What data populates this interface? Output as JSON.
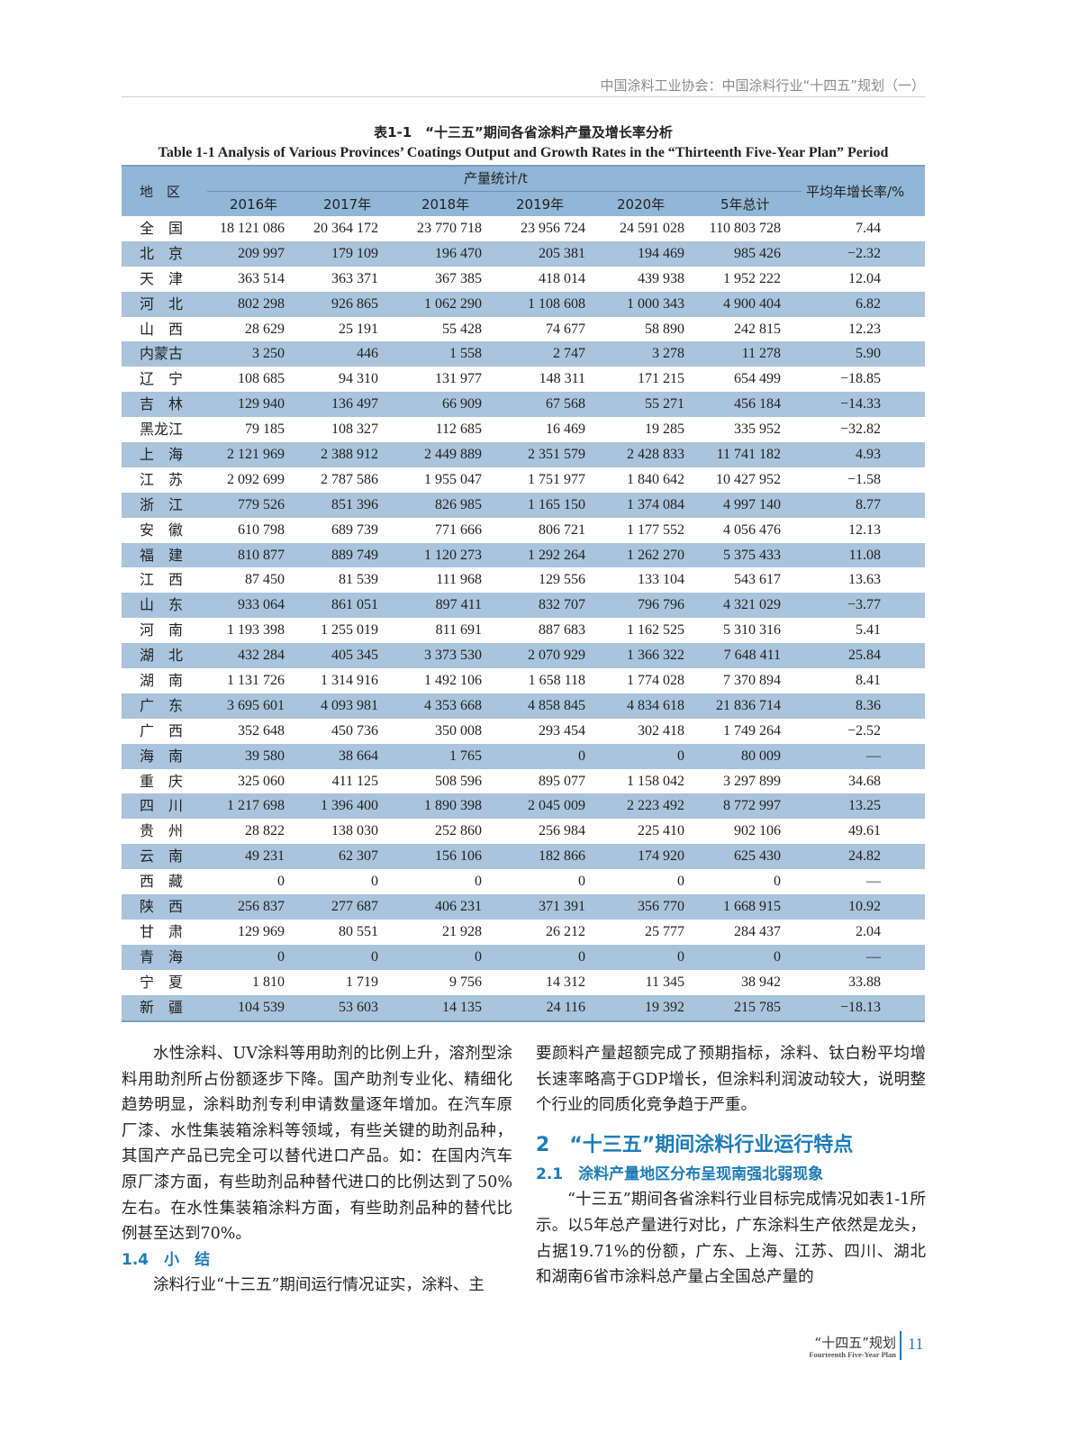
{
  "running_head": "中国涂料工业协会：中国涂料行业“十四五”规划（一）",
  "table": {
    "caption_cn": "表1-1　“十三五”期间各省涂料产量及增长率分析",
    "caption_en": "Table 1-1  Analysis of Various Provinces’ Coatings Output and Growth Rates in the “Thirteenth Five-Year Plan” Period",
    "header": {
      "region": "地　区",
      "group": "产量统计/t",
      "years": [
        "2016年",
        "2017年",
        "2018年",
        "2019年",
        "2020年",
        "5年总计"
      ],
      "rate": "平均年增长率/%"
    },
    "header_color": "#92b6d6",
    "stripe_color": "#a9c4dc",
    "rows": [
      [
        "全　国",
        "18 121 086",
        "20 364 172",
        "23 770 718",
        "23 956 724",
        "24 591 028",
        "110 803 728",
        "7.44"
      ],
      [
        "北　京",
        "209 997",
        "179 109",
        "196 470",
        "205 381",
        "194 469",
        "985 426",
        "−2.32"
      ],
      [
        "天　津",
        "363 514",
        "363 371",
        "367 385",
        "418 014",
        "439 938",
        "1 952 222",
        "12.04"
      ],
      [
        "河　北",
        "802 298",
        "926 865",
        "1 062 290",
        "1 108 608",
        "1 000 343",
        "4 900 404",
        "6.82"
      ],
      [
        "山　西",
        "28 629",
        "25 191",
        "55 428",
        "74 677",
        "58 890",
        "242 815",
        "12.23"
      ],
      [
        "内蒙古",
        "3 250",
        "446",
        "1 558",
        "2 747",
        "3 278",
        "11 278",
        "5.90"
      ],
      [
        "辽　宁",
        "108 685",
        "94 310",
        "131 977",
        "148 311",
        "171 215",
        "654 499",
        "−18.85"
      ],
      [
        "吉　林",
        "129 940",
        "136 497",
        "66 909",
        "67 568",
        "55 271",
        "456 184",
        "−14.33"
      ],
      [
        "黑龙江",
        "79 185",
        "108 327",
        "112 685",
        "16 469",
        "19 285",
        "335 952",
        "−32.82"
      ],
      [
        "上　海",
        "2 121 969",
        "2 388 912",
        "2 449 889",
        "2 351 579",
        "2 428 833",
        "11 741 182",
        "4.93"
      ],
      [
        "江　苏",
        "2 092 699",
        "2 787 586",
        "1 955 047",
        "1 751 977",
        "1 840 642",
        "10 427 952",
        "−1.58"
      ],
      [
        "浙　江",
        "779 526",
        "851 396",
        "826 985",
        "1 165 150",
        "1 374 084",
        "4 997 140",
        "8.77"
      ],
      [
        "安　徽",
        "610 798",
        "689 739",
        "771 666",
        "806 721",
        "1 177 552",
        "4 056 476",
        "12.13"
      ],
      [
        "福　建",
        "810 877",
        "889 749",
        "1 120 273",
        "1 292 264",
        "1 262 270",
        "5 375 433",
        "11.08"
      ],
      [
        "江　西",
        "87 450",
        "81 539",
        "111 968",
        "129 556",
        "133 104",
        "543 617",
        "13.63"
      ],
      [
        "山　东",
        "933 064",
        "861 051",
        "897 411",
        "832 707",
        "796 796",
        "4 321 029",
        "−3.77"
      ],
      [
        "河　南",
        "1 193 398",
        "1 255 019",
        "811 691",
        "887 683",
        "1 162 525",
        "5 310 316",
        "5.41"
      ],
      [
        "湖　北",
        "432 284",
        "405 345",
        "3 373 530",
        "2 070 929",
        "1 366 322",
        "7 648 411",
        "25.84"
      ],
      [
        "湖　南",
        "1 131 726",
        "1 314 916",
        "1 492 106",
        "1 658 118",
        "1 774 028",
        "7 370 894",
        "8.41"
      ],
      [
        "广　东",
        "3 695 601",
        "4 093 981",
        "4 353 668",
        "4 858 845",
        "4 834 618",
        "21 836 714",
        "8.36"
      ],
      [
        "广　西",
        "352 648",
        "450 736",
        "350 008",
        "293 454",
        "302 418",
        "1 749 264",
        "−2.52"
      ],
      [
        "海　南",
        "39 580",
        "38 664",
        "1 765",
        "0",
        "0",
        "80 009",
        "—"
      ],
      [
        "重　庆",
        "325 060",
        "411 125",
        "508 596",
        "895 077",
        "1 158 042",
        "3 297 899",
        "34.68"
      ],
      [
        "四　川",
        "1 217 698",
        "1 396 400",
        "1 890 398",
        "2 045 009",
        "2 223 492",
        "8 772 997",
        "13.25"
      ],
      [
        "贵　州",
        "28 822",
        "138 030",
        "252 860",
        "256 984",
        "225 410",
        "902 106",
        "49.61"
      ],
      [
        "云　南",
        "49 231",
        "62 307",
        "156 106",
        "182 866",
        "174 920",
        "625 430",
        "24.82"
      ],
      [
        "西　藏",
        "0",
        "0",
        "0",
        "0",
        "0",
        "0",
        "—"
      ],
      [
        "陕　西",
        "256 837",
        "277 687",
        "406 231",
        "371 391",
        "356 770",
        "1 668 915",
        "10.92"
      ],
      [
        "甘　肃",
        "129 969",
        "80 551",
        "21 928",
        "26 212",
        "25 777",
        "284 437",
        "2.04"
      ],
      [
        "青　海",
        "0",
        "0",
        "0",
        "0",
        "0",
        "0",
        "—"
      ],
      [
        "宁　夏",
        "1 810",
        "1 719",
        "9 756",
        "14 312",
        "11 345",
        "38 942",
        "33.88"
      ],
      [
        "新　疆",
        "104 539",
        "53 603",
        "14 135",
        "24 116",
        "19 392",
        "215 785",
        "−18.13"
      ]
    ]
  },
  "body": {
    "left_para1": "水性涂料、UV涂料等用助剂的比例上升，溶剂型涂料用助剂所占份额逐步下降。国产助剂专业化、精细化趋势明显，涂料助剂专利申请数量逐年增加。在汽车原厂漆、水性集装箱涂料等领域，有些关键的助剂品种，其国产产品已完全可以替代进口产品。如：在国内汽车原厂漆方面，有些助剂品种替代进口的比例达到了50%左右。在水性集装箱涂料方面，有些助剂品种的替代比例甚至达到70%。",
    "heading_1_4": "1.4　小　结",
    "left_para2": "涂料行业“十三五”期间运行情况证实，涂料、主",
    "right_para1": "要颜料产量超额完成了预期指标，涂料、钛白粉平均增长速率略高于GDP增长，但涂料利润波动较大，说明整个行业的同质化竞争趋于严重。",
    "heading_2": "2　“十三五”期间涂料行业运行特点",
    "heading_2_1": "2.1　涂料产量地区分布呈现南强北弱现象",
    "right_para2": "“十三五”期间各省涂料行业目标完成情况如表1-1所示。以5年总产量进行对比，广东涂料生产依然是龙头，占据19.71%的份额，广东、上海、江苏、四川、湖北和湖南6省市涂料总产量占全国总产量的"
  },
  "footer": {
    "title_cn": "“十四五”规划",
    "title_en": "Fourteenth Five-Year Plan",
    "page_number": "11"
  },
  "accent_color": "#1e7bb6"
}
